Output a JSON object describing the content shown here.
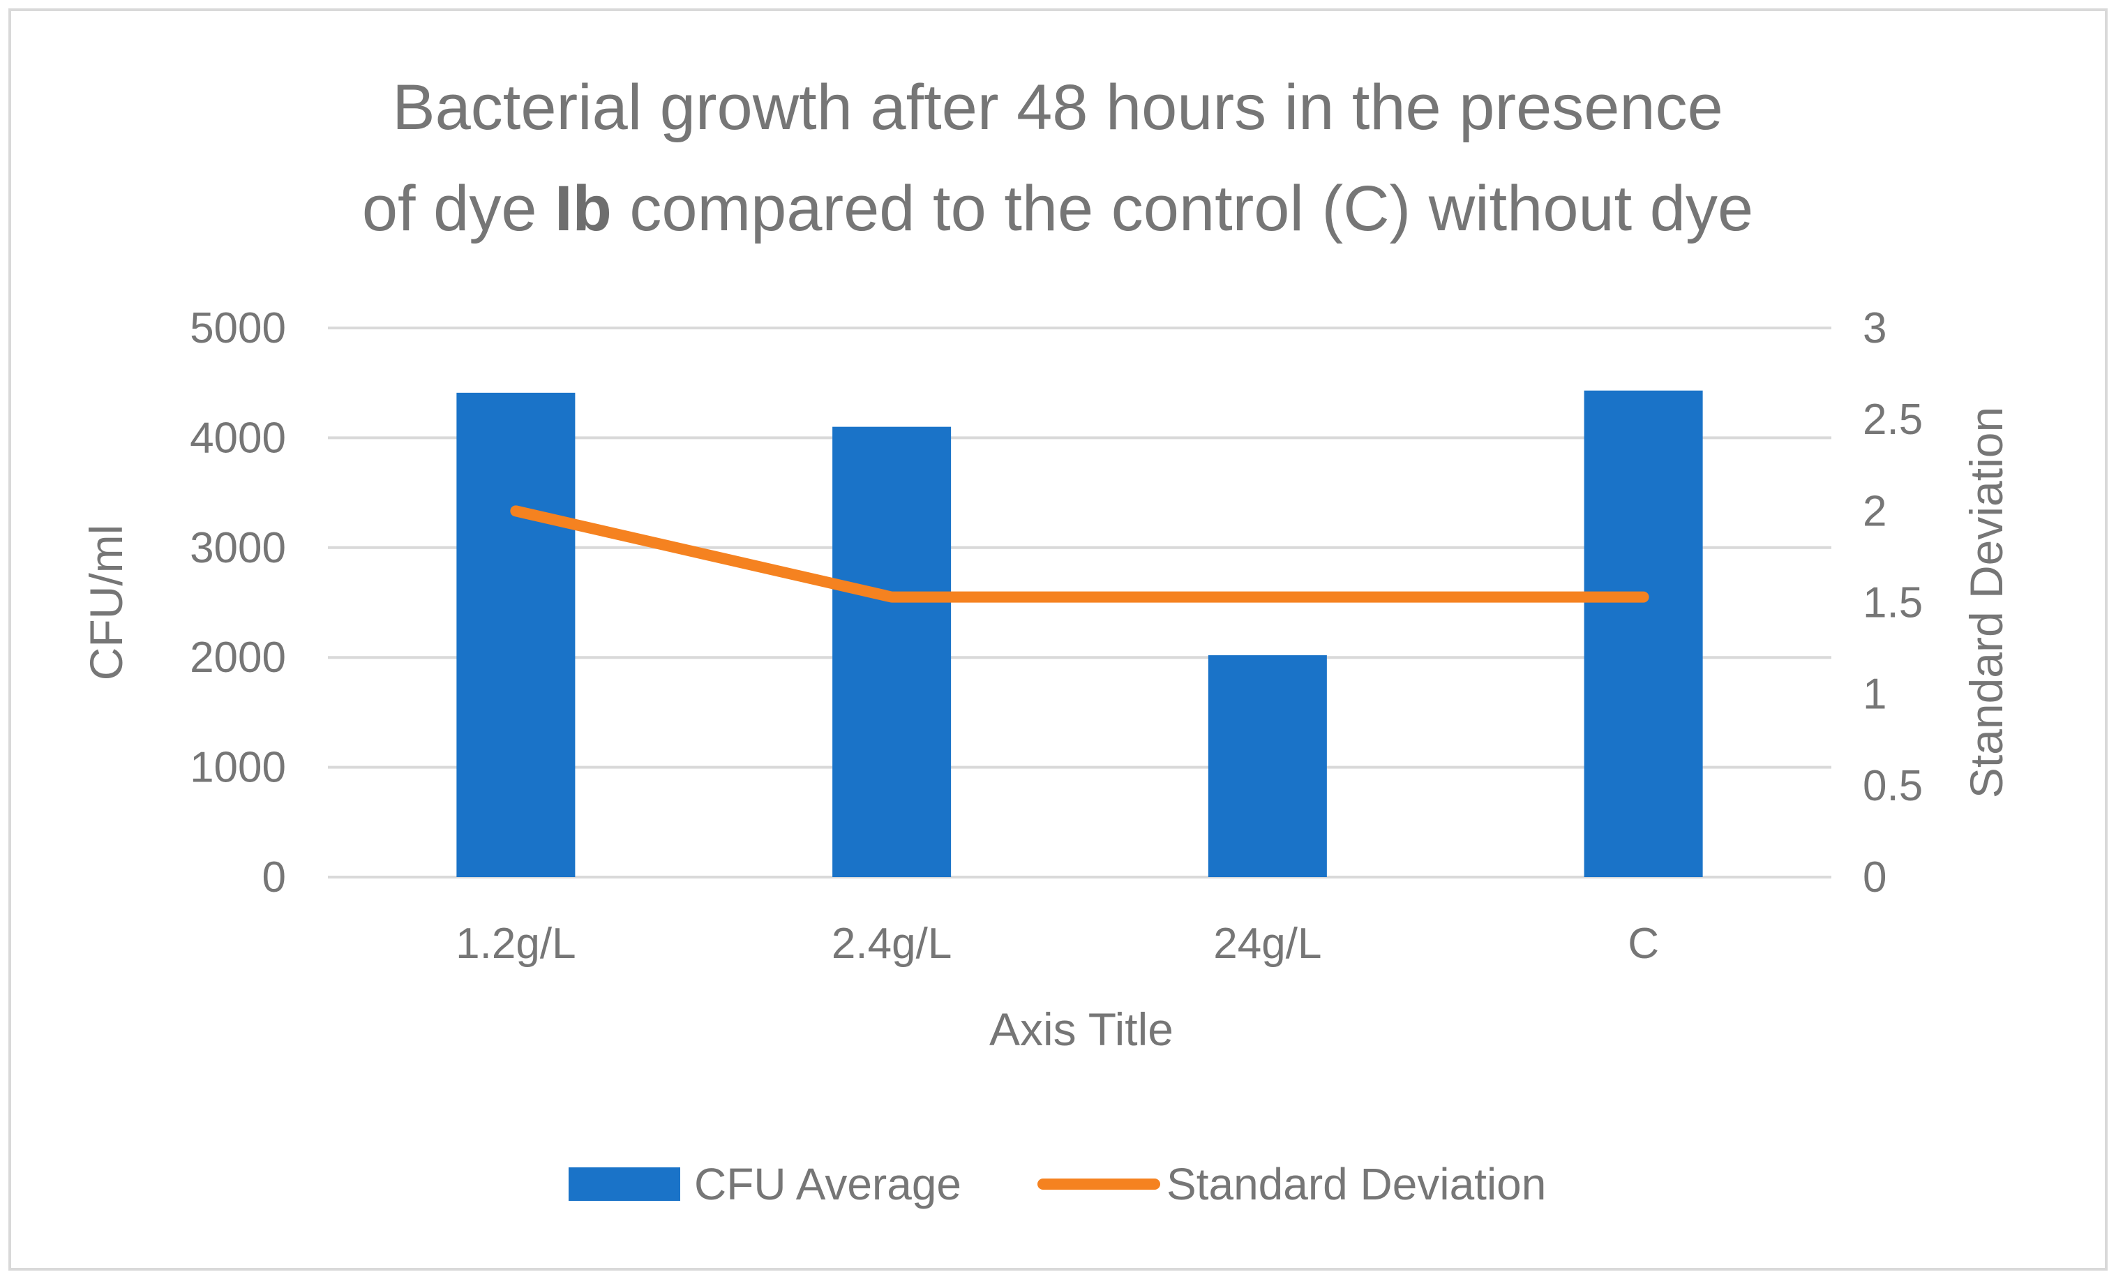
{
  "chart_data": {
    "type": "bar",
    "title_line1": "Bacterial growth after 48 hours in the presence",
    "title_line2_prefix": "of dye ",
    "title_line2_bold": "Ib",
    "title_line2_suffix": " compared to the control (C) without dye",
    "categories": [
      "1.2g/L",
      "2.4g/L",
      "24g/L",
      "C"
    ],
    "series": [
      {
        "name": "CFU Average",
        "kind": "bar",
        "axis": "left",
        "color": "#1a73c8",
        "values": [
          4410,
          4100,
          2020,
          4430
        ]
      },
      {
        "name": "Standard Deviation",
        "kind": "line",
        "axis": "right",
        "color": "#f58220",
        "values": [
          2.0,
          1.53,
          1.53,
          1.53
        ]
      }
    ],
    "xlabel": "Axis Title",
    "ylabel": "CFU/ml",
    "y2label": "Standard Deviation",
    "ylim": [
      0,
      5000
    ],
    "y2lim": [
      0,
      3
    ],
    "yticks": [
      "0",
      "1000",
      "2000",
      "3000",
      "4000",
      "5000"
    ],
    "y2ticks": [
      "0",
      "0.5",
      "1",
      "1.5",
      "2",
      "2.5",
      "3"
    ],
    "grid": true,
    "legend": "bottom"
  },
  "colors": {
    "grid": "#d9d9d9",
    "text": "#767676",
    "border": "#d9d9d9"
  }
}
